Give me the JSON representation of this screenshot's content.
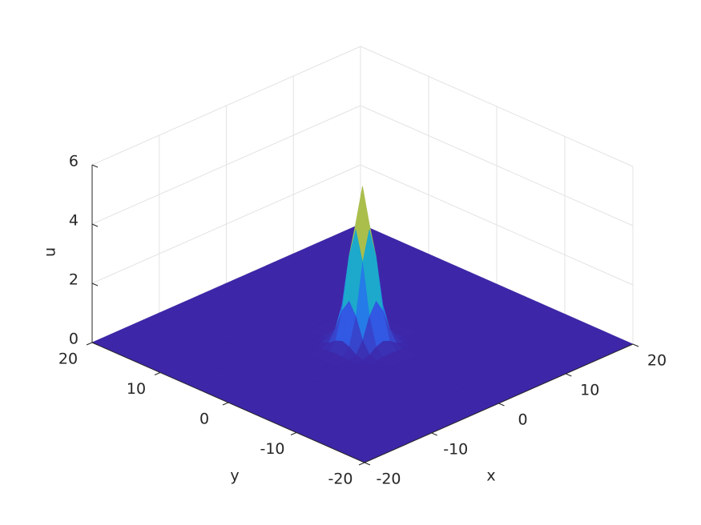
{
  "chart_data": {
    "type": "surface",
    "xlabel": "x",
    "ylabel": "y",
    "zlabel": "u",
    "colormap": "parula",
    "grid": true,
    "x": [
      -20,
      -15,
      -10,
      -6,
      -4,
      -3,
      -2,
      -1,
      0,
      1,
      2,
      3,
      4,
      6,
      10,
      15,
      20
    ],
    "y": [
      -20,
      -15,
      -10,
      -6,
      -4,
      -3,
      -2,
      -1,
      0,
      1,
      2,
      3,
      4,
      6,
      10,
      15,
      20
    ],
    "z": [
      [
        0,
        0,
        0,
        0,
        0,
        0,
        0,
        0,
        0,
        0,
        0,
        0,
        0,
        0,
        0,
        0,
        0
      ],
      [
        0,
        0,
        0,
        0,
        0,
        0,
        0,
        0,
        0,
        0,
        0,
        0,
        0,
        0,
        0,
        0,
        0
      ],
      [
        0,
        0,
        0,
        0,
        0,
        0,
        0,
        0,
        0,
        0,
        0,
        0,
        0,
        0,
        0,
        0,
        0
      ],
      [
        0,
        0,
        0,
        0,
        0,
        0,
        0,
        0,
        0,
        0,
        0,
        0,
        0,
        0,
        0,
        0,
        0
      ],
      [
        0,
        0,
        0,
        0,
        0,
        0,
        0.01,
        0.03,
        0.05,
        0.03,
        0.01,
        0,
        0,
        0,
        0,
        0,
        0
      ],
      [
        0,
        0,
        0,
        0,
        0,
        0.03,
        0.11,
        0.28,
        0.37,
        0.28,
        0.11,
        0.03,
        0,
        0,
        0,
        0,
        0
      ],
      [
        0,
        0,
        0,
        0,
        0.01,
        0.11,
        0.5,
        1.21,
        1.62,
        1.21,
        0.5,
        0.11,
        0.01,
        0,
        0,
        0,
        0
      ],
      [
        0,
        0,
        0,
        0,
        0.03,
        0.28,
        1.21,
        2.93,
        3.94,
        2.93,
        1.21,
        0.28,
        0.03,
        0,
        0,
        0,
        0
      ],
      [
        0,
        0,
        0,
        0,
        0.05,
        0.37,
        1.62,
        3.94,
        5.3,
        3.94,
        1.62,
        0.37,
        0.05,
        0,
        0,
        0,
        0
      ],
      [
        0,
        0,
        0,
        0,
        0.03,
        0.28,
        1.21,
        2.93,
        3.94,
        2.93,
        1.21,
        0.28,
        0.03,
        0,
        0,
        0,
        0
      ],
      [
        0,
        0,
        0,
        0,
        0.01,
        0.11,
        0.5,
        1.21,
        1.62,
        1.21,
        0.5,
        0.11,
        0.01,
        0,
        0,
        0,
        0
      ],
      [
        0,
        0,
        0,
        0,
        0,
        0.03,
        0.11,
        0.28,
        0.37,
        0.28,
        0.11,
        0.03,
        0,
        0,
        0,
        0,
        0
      ],
      [
        0,
        0,
        0,
        0,
        0,
        0,
        0.01,
        0.03,
        0.05,
        0.03,
        0.01,
        0,
        0,
        0,
        0,
        0,
        0
      ],
      [
        0,
        0,
        0,
        0,
        0,
        0,
        0,
        0,
        0,
        0,
        0,
        0,
        0,
        0,
        0,
        0,
        0
      ],
      [
        0,
        0,
        0,
        0,
        0,
        0,
        0,
        0,
        0,
        0,
        0,
        0,
        0,
        0,
        0,
        0,
        0
      ],
      [
        0,
        0,
        0,
        0,
        0,
        0,
        0,
        0,
        0,
        0,
        0,
        0,
        0,
        0,
        0,
        0,
        0
      ],
      [
        0,
        0,
        0,
        0,
        0,
        0,
        0,
        0,
        0,
        0,
        0,
        0,
        0,
        0,
        0,
        0,
        0
      ]
    ],
    "xlim": [
      -20,
      20
    ],
    "ylim": [
      -20,
      20
    ],
    "zlim": [
      0,
      6
    ],
    "xticks": [
      -20,
      -10,
      0,
      10,
      20
    ],
    "yticks": [
      -20,
      -10,
      0,
      10,
      20
    ],
    "zticks": [
      0,
      2,
      4,
      6
    ]
  }
}
